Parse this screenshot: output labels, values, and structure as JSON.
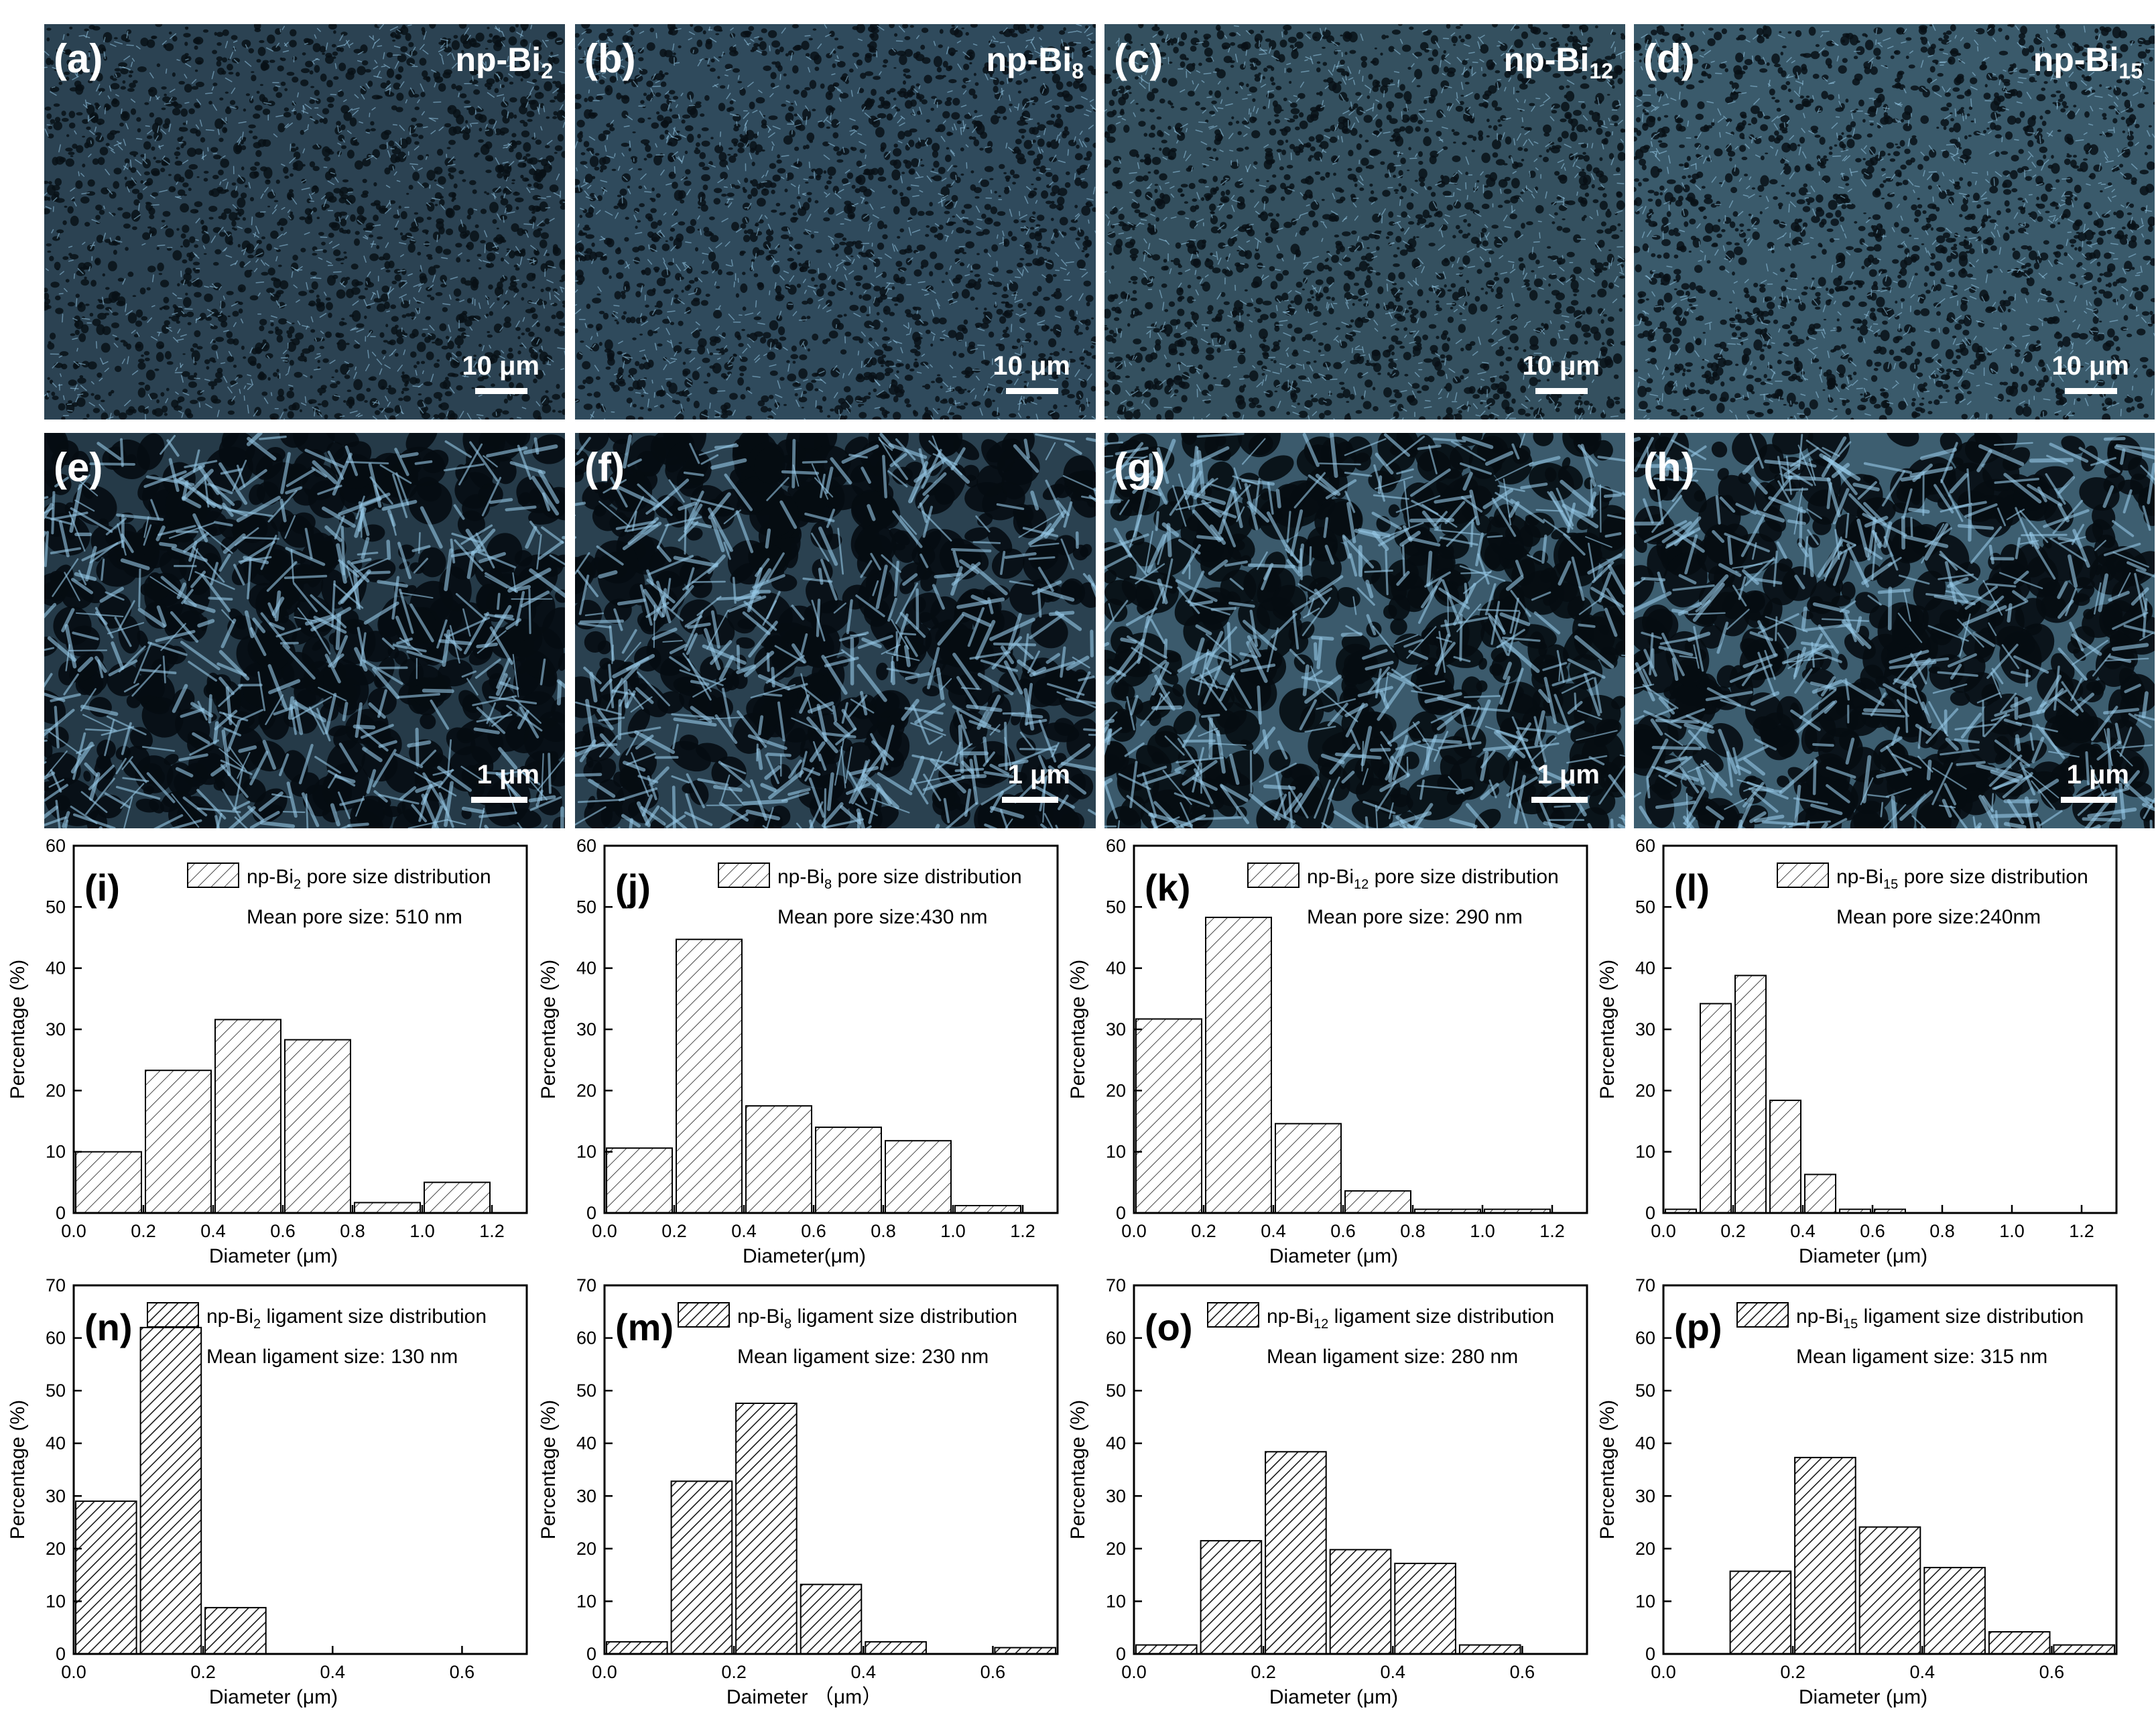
{
  "sem_panels": [
    {
      "label": "(a)",
      "title_base": "np-Bi",
      "title_sub": "2",
      "scale": "10 μm",
      "row": "top",
      "tone": "#2b4252"
    },
    {
      "label": "(b)",
      "title_base": "np-Bi",
      "title_sub": "8",
      "scale": "10 μm",
      "row": "top",
      "tone": "#2f4a5c"
    },
    {
      "label": "(c)",
      "title_base": "np-Bi",
      "title_sub": "12",
      "scale": "10 μm",
      "row": "top",
      "tone": "#34505f"
    },
    {
      "label": "(d)",
      "title_base": "np-Bi",
      "title_sub": "15",
      "scale": "10 μm",
      "row": "top",
      "tone": "#3a5a6b"
    },
    {
      "label": "(e)",
      "title_base": "",
      "title_sub": "",
      "scale": "1 μm",
      "row": "bottom",
      "tone": "#253a48"
    },
    {
      "label": "(f)",
      "title_base": "",
      "title_sub": "",
      "scale": "1 μm",
      "row": "bottom",
      "tone": "#2a4150"
    },
    {
      "label": "(g)",
      "title_base": "",
      "title_sub": "",
      "scale": "1 μm",
      "row": "bottom",
      "tone": "#3b5a6c"
    },
    {
      "label": "(h)",
      "title_base": "",
      "title_sub": "",
      "scale": "1 μm",
      "row": "bottom",
      "tone": "#3d5e70"
    }
  ],
  "chart_data": [
    {
      "type": "bar",
      "panel": "(i)",
      "hatch": "light",
      "legend_base": "np-Bi",
      "legend_sub": "2",
      "legend_rest": " pore size distribution",
      "note": "Mean pore size: 510 nm",
      "xlabel": "Diameter (μm)",
      "ylabel": "Percentage (%)",
      "xlim": [
        0,
        1.3
      ],
      "ylim": [
        0,
        60
      ],
      "xticks": [
        0.0,
        0.2,
        0.4,
        0.6,
        0.8,
        1.0,
        1.2
      ],
      "xtick_labels": [
        "0.0",
        "0.2",
        "0.4",
        "0.6",
        "0.8",
        "1.0",
        "1.2"
      ],
      "yticks": [
        0,
        10,
        20,
        30,
        40,
        50,
        60
      ],
      "ytick_labels": [
        "0",
        "10",
        "20",
        "30",
        "40",
        "50",
        "60"
      ],
      "bin_width": 0.2,
      "bins": [
        {
          "x0": 0.0,
          "value": 10.0
        },
        {
          "x0": 0.2,
          "value": 23.3
        },
        {
          "x0": 0.4,
          "value": 31.6
        },
        {
          "x0": 0.6,
          "value": 28.3
        },
        {
          "x0": 0.8,
          "value": 1.7
        },
        {
          "x0": 1.0,
          "value": 5.0
        }
      ]
    },
    {
      "type": "bar",
      "panel": "(j)",
      "hatch": "light",
      "legend_base": "np-Bi",
      "legend_sub": "8",
      "legend_rest": " pore size distribution",
      "note": "Mean pore size:430 nm",
      "xlabel": "Diameter(μm)",
      "ylabel": "Percentage (%)",
      "xlim": [
        0,
        1.3
      ],
      "ylim": [
        0,
        60
      ],
      "xticks": [
        0.0,
        0.2,
        0.4,
        0.6,
        0.8,
        1.0,
        1.2
      ],
      "xtick_labels": [
        "0.0",
        "0.2",
        "0.4",
        "0.6",
        "0.8",
        "1.0",
        "1.2"
      ],
      "yticks": [
        0,
        10,
        20,
        30,
        40,
        50,
        60
      ],
      "ytick_labels": [
        "0",
        "10",
        "20",
        "30",
        "40",
        "50",
        "60"
      ],
      "bin_width": 0.2,
      "bins": [
        {
          "x0": 0.0,
          "value": 10.6
        },
        {
          "x0": 0.2,
          "value": 44.7
        },
        {
          "x0": 0.4,
          "value": 17.5
        },
        {
          "x0": 0.6,
          "value": 14.0
        },
        {
          "x0": 0.8,
          "value": 11.8
        },
        {
          "x0": 1.0,
          "value": 1.2
        }
      ]
    },
    {
      "type": "bar",
      "panel": "(k)",
      "hatch": "light",
      "legend_base": "np-Bi",
      "legend_sub": "12",
      "legend_rest": " pore size distribution",
      "note": "Mean pore size: 290 nm",
      "xlabel": "Diameter (μm)",
      "ylabel": "Percentage (%)",
      "xlim": [
        0,
        1.3
      ],
      "ylim": [
        0,
        60
      ],
      "xticks": [
        0.0,
        0.2,
        0.4,
        0.6,
        0.8,
        1.0,
        1.2
      ],
      "xtick_labels": [
        "0.0",
        "0.2",
        "0.4",
        "0.6",
        "0.8",
        "1.0",
        "1.2"
      ],
      "yticks": [
        0,
        10,
        20,
        30,
        40,
        50,
        60
      ],
      "ytick_labels": [
        "0",
        "10",
        "20",
        "30",
        "40",
        "50",
        "60"
      ],
      "bin_width": 0.2,
      "bins": [
        {
          "x0": 0.0,
          "value": 31.7
        },
        {
          "x0": 0.2,
          "value": 48.3
        },
        {
          "x0": 0.4,
          "value": 14.6
        },
        {
          "x0": 0.6,
          "value": 3.6
        },
        {
          "x0": 0.8,
          "value": 0.6
        },
        {
          "x0": 1.0,
          "value": 0.6
        }
      ]
    },
    {
      "type": "bar",
      "panel": "(l)",
      "hatch": "light",
      "legend_base": "np-Bi",
      "legend_sub": "15",
      "legend_rest": " pore size distribution",
      "note": "Mean pore size:240nm",
      "xlabel": "Diameter (μm)",
      "ylabel": "Percentage (%)",
      "xlim": [
        0,
        1.3
      ],
      "ylim": [
        0,
        60
      ],
      "xticks": [
        0.0,
        0.2,
        0.4,
        0.6,
        0.8,
        1.0,
        1.2
      ],
      "xtick_labels": [
        "0.0",
        "0.2",
        "0.4",
        "0.6",
        "0.8",
        "1.0",
        "1.2"
      ],
      "yticks": [
        0,
        10,
        20,
        30,
        40,
        50,
        60
      ],
      "ytick_labels": [
        "0",
        "10",
        "20",
        "30",
        "40",
        "50",
        "60"
      ],
      "bin_width": 0.1,
      "bins": [
        {
          "x0": 0.0,
          "value": 0.6
        },
        {
          "x0": 0.1,
          "value": 34.2
        },
        {
          "x0": 0.2,
          "value": 38.8
        },
        {
          "x0": 0.3,
          "value": 18.4
        },
        {
          "x0": 0.4,
          "value": 6.3
        },
        {
          "x0": 0.5,
          "value": 0.6
        },
        {
          "x0": 0.6,
          "value": 0.6
        }
      ]
    },
    {
      "type": "bar",
      "panel": "(n)",
      "hatch": "dark",
      "legend_base": "np-Bi",
      "legend_sub": "2",
      "legend_rest": " ligament size distribution",
      "note": "Mean ligament size: 130 nm",
      "xlabel": "Diameter (μm)",
      "ylabel": "Percentage (%)",
      "xlim": [
        0,
        0.7
      ],
      "ylim": [
        0,
        70
      ],
      "xticks": [
        0.0,
        0.2,
        0.4,
        0.6
      ],
      "xtick_labels": [
        "0.0",
        "0.2",
        "0.4",
        "0.6"
      ],
      "yticks": [
        0,
        10,
        20,
        30,
        40,
        50,
        60,
        70
      ],
      "ytick_labels": [
        "0",
        "10",
        "20",
        "30",
        "40",
        "50",
        "60",
        "70"
      ],
      "bin_width": 0.1,
      "bins": [
        {
          "x0": 0.0,
          "value": 29.0
        },
        {
          "x0": 0.1,
          "value": 62.0
        },
        {
          "x0": 0.2,
          "value": 8.8
        }
      ]
    },
    {
      "type": "bar",
      "panel": "(m)",
      "hatch": "dark",
      "legend_base": "np-Bi",
      "legend_sub": "8",
      "legend_rest": " ligament size distribution",
      "note": "Mean ligament size: 230 nm",
      "xlabel": "Daimeter （μm）",
      "ylabel": "Percentage (%)",
      "xlim": [
        0,
        0.7
      ],
      "ylim": [
        0,
        70
      ],
      "xticks": [
        0.0,
        0.2,
        0.4,
        0.6
      ],
      "xtick_labels": [
        "0.0",
        "0.2",
        "0.4",
        "0.6"
      ],
      "yticks": [
        0,
        10,
        20,
        30,
        40,
        50,
        60,
        70
      ],
      "ytick_labels": [
        "0",
        "10",
        "20",
        "30",
        "40",
        "50",
        "60",
        "70"
      ],
      "bin_width": 0.1,
      "bins": [
        {
          "x0": 0.0,
          "value": 2.3
        },
        {
          "x0": 0.1,
          "value": 32.8
        },
        {
          "x0": 0.2,
          "value": 47.6
        },
        {
          "x0": 0.3,
          "value": 13.2
        },
        {
          "x0": 0.4,
          "value": 2.3
        },
        {
          "x0": 0.6,
          "value": 1.2
        }
      ]
    },
    {
      "type": "bar",
      "panel": "(o)",
      "hatch": "dark",
      "legend_base": "np-Bi",
      "legend_sub": "12",
      "legend_rest": " ligament size distribution",
      "note": "Mean ligament size: 280 nm",
      "xlabel": "Diameter (μm)",
      "ylabel": "Percentage (%)",
      "xlim": [
        0,
        0.7
      ],
      "ylim": [
        0,
        70
      ],
      "xticks": [
        0.0,
        0.2,
        0.4,
        0.6
      ],
      "xtick_labels": [
        "0.0",
        "0.2",
        "0.4",
        "0.6"
      ],
      "yticks": [
        0,
        10,
        20,
        30,
        40,
        50,
        60,
        70
      ],
      "ytick_labels": [
        "0",
        "10",
        "20",
        "30",
        "40",
        "50",
        "60",
        "70"
      ],
      "bin_width": 0.1,
      "bins": [
        {
          "x0": 0.0,
          "value": 1.7
        },
        {
          "x0": 0.1,
          "value": 21.5
        },
        {
          "x0": 0.2,
          "value": 38.4
        },
        {
          "x0": 0.3,
          "value": 19.8
        },
        {
          "x0": 0.4,
          "value": 17.2
        },
        {
          "x0": 0.5,
          "value": 1.7
        }
      ]
    },
    {
      "type": "bar",
      "panel": "(p)",
      "hatch": "dark",
      "legend_base": "np-Bi",
      "legend_sub": "15",
      "legend_rest": " ligament size distribution",
      "note": "Mean ligament size: 315 nm",
      "xlabel": "Diameter (μm)",
      "ylabel": "Percentage (%)",
      "xlim": [
        0,
        0.7
      ],
      "ylim": [
        0,
        70
      ],
      "xticks": [
        0.0,
        0.2,
        0.4,
        0.6
      ],
      "xtick_labels": [
        "0.0",
        "0.2",
        "0.4",
        "0.6"
      ],
      "yticks": [
        0,
        10,
        20,
        30,
        40,
        50,
        60,
        70
      ],
      "ytick_labels": [
        "0",
        "10",
        "20",
        "30",
        "40",
        "50",
        "60",
        "70"
      ],
      "bin_width": 0.1,
      "bins": [
        {
          "x0": 0.1,
          "value": 15.7
        },
        {
          "x0": 0.2,
          "value": 37.3
        },
        {
          "x0": 0.3,
          "value": 24.1
        },
        {
          "x0": 0.4,
          "value": 16.4
        },
        {
          "x0": 0.5,
          "value": 4.2
        },
        {
          "x0": 0.6,
          "value": 1.7
        }
      ]
    }
  ]
}
